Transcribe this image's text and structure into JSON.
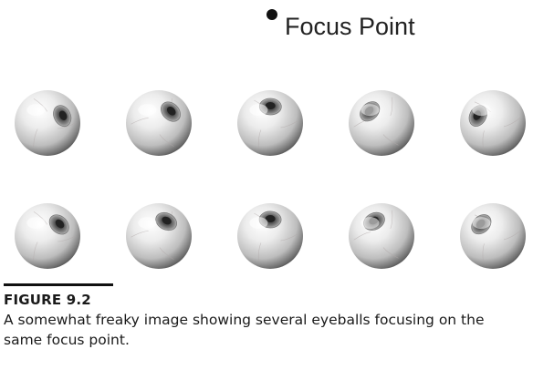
{
  "figure": {
    "focus_label": "Focus Point",
    "eyeball_rows": [
      {
        "row": 1,
        "count": 5
      },
      {
        "row": 2,
        "count": 5
      }
    ]
  },
  "caption": {
    "title": "FIGURE 9.2",
    "text": "A somewhat freaky image showing several eyeballs focusing on the same focus point."
  },
  "colors": {
    "background": "#ffffff",
    "text": "#1a1a1a",
    "sphere_light": "#fafafa",
    "sphere_mid": "#c8c8c8",
    "sphere_dark": "#4a4a4a",
    "iris": "#6e6e6e",
    "pupil": "#2a2a2a"
  }
}
